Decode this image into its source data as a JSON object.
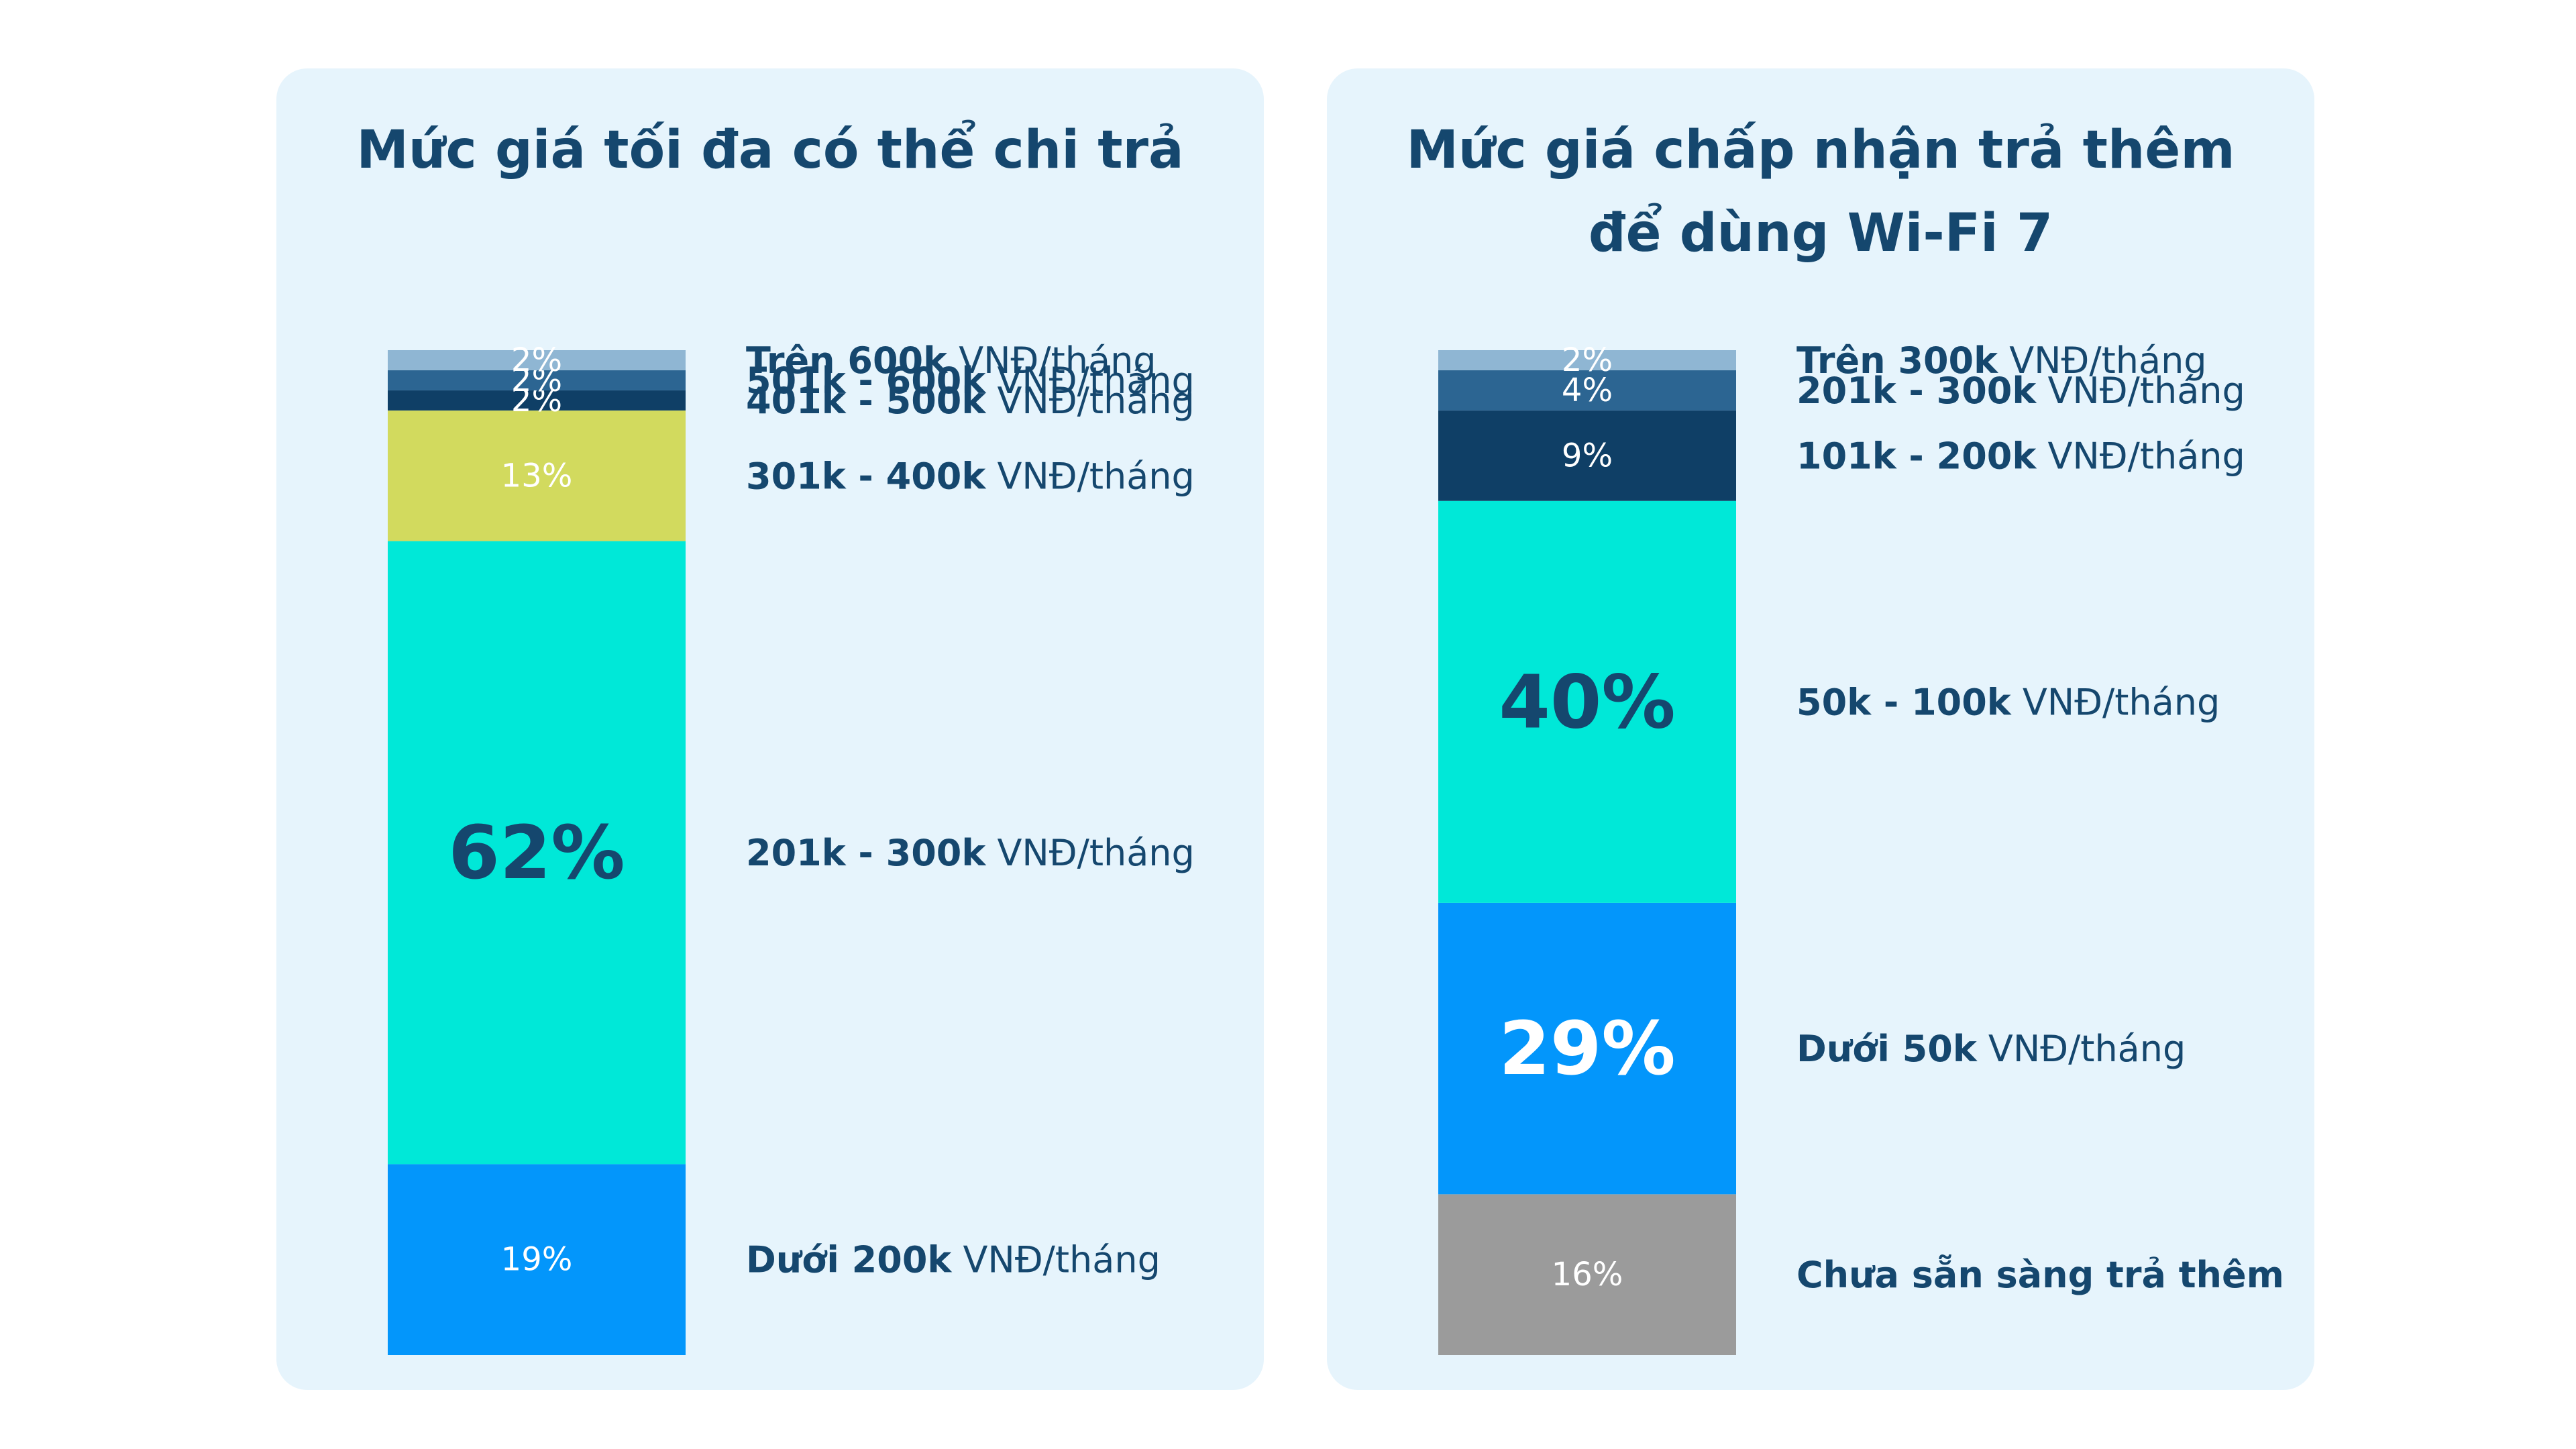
{
  "colors": {
    "panel_background": "#e6f4fc",
    "title": "#15476e",
    "legend_text": "#15476e"
  },
  "chart_data": [
    {
      "type": "bar",
      "stacked": true,
      "orientation": "vertical",
      "title": "Mức giá tối đa có thể chi trả",
      "unit": "%",
      "segments": [
        {
          "category_bold": "Dưới 200k",
          "category_rest": " VNĐ/tháng",
          "value": 19,
          "label": "19%",
          "color": "#0396fb",
          "label_color": "#ffffff",
          "emphasis": false
        },
        {
          "category_bold": "201k - 300k",
          "category_rest": " VNĐ/tháng",
          "value": 62,
          "label": "62%",
          "color": "#00e8d8",
          "label_color": "#15476e",
          "emphasis": true
        },
        {
          "category_bold": "301k - 400k",
          "category_rest": " VNĐ/tháng",
          "value": 13,
          "label": "13%",
          "color": "#d2da5e",
          "label_color": "#ffffff",
          "emphasis": false
        },
        {
          "category_bold": "401k - 500k",
          "category_rest": " VNĐ/tháng",
          "value": 2,
          "label": "2%",
          "color": "#0f3f66",
          "label_color": "#ffffff",
          "emphasis": false
        },
        {
          "category_bold": "501k - 600k",
          "category_rest": " VNĐ/tháng",
          "value": 2,
          "label": "2%",
          "color": "#2c6592",
          "label_color": "#ffffff",
          "emphasis": false
        },
        {
          "category_bold": "Trên 600k",
          "category_rest": " VNĐ/tháng",
          "value": 2,
          "label": "2%",
          "color": "#8fb6d3",
          "label_color": "#ffffff",
          "emphasis": false
        }
      ]
    },
    {
      "type": "bar",
      "stacked": true,
      "orientation": "vertical",
      "title": "Mức giá chấp nhận trả thêm\nđể dùng Wi-Fi 7",
      "unit": "%",
      "segments": [
        {
          "category_bold": "Chưa sẵn sàng trả thêm",
          "category_rest": "",
          "value": 16,
          "label": "16%",
          "color": "#9b9b9b",
          "label_color": "#ffffff",
          "emphasis": false
        },
        {
          "category_bold": "Dưới 50k",
          "category_rest": " VNĐ/tháng",
          "value": 29,
          "label": "29%",
          "color": "#0396fb",
          "label_color": "#ffffff",
          "emphasis": true
        },
        {
          "category_bold": "50k - 100k",
          "category_rest": " VNĐ/tháng",
          "value": 40,
          "label": "40%",
          "color": "#00e8d8",
          "label_color": "#15476e",
          "emphasis": true
        },
        {
          "category_bold": "101k - 200k",
          "category_rest": " VNĐ/tháng",
          "value": 9,
          "label": "9%",
          "color": "#0f3f66",
          "label_color": "#ffffff",
          "emphasis": false
        },
        {
          "category_bold": "201k - 300k",
          "category_rest": " VNĐ/tháng",
          "value": 4,
          "label": "4%",
          "color": "#2c6592",
          "label_color": "#ffffff",
          "emphasis": false
        },
        {
          "category_bold": "Trên 300k",
          "category_rest": " VNĐ/tháng",
          "value": 2,
          "label": "2%",
          "color": "#8fb6d3",
          "label_color": "#ffffff",
          "emphasis": false
        }
      ]
    }
  ]
}
